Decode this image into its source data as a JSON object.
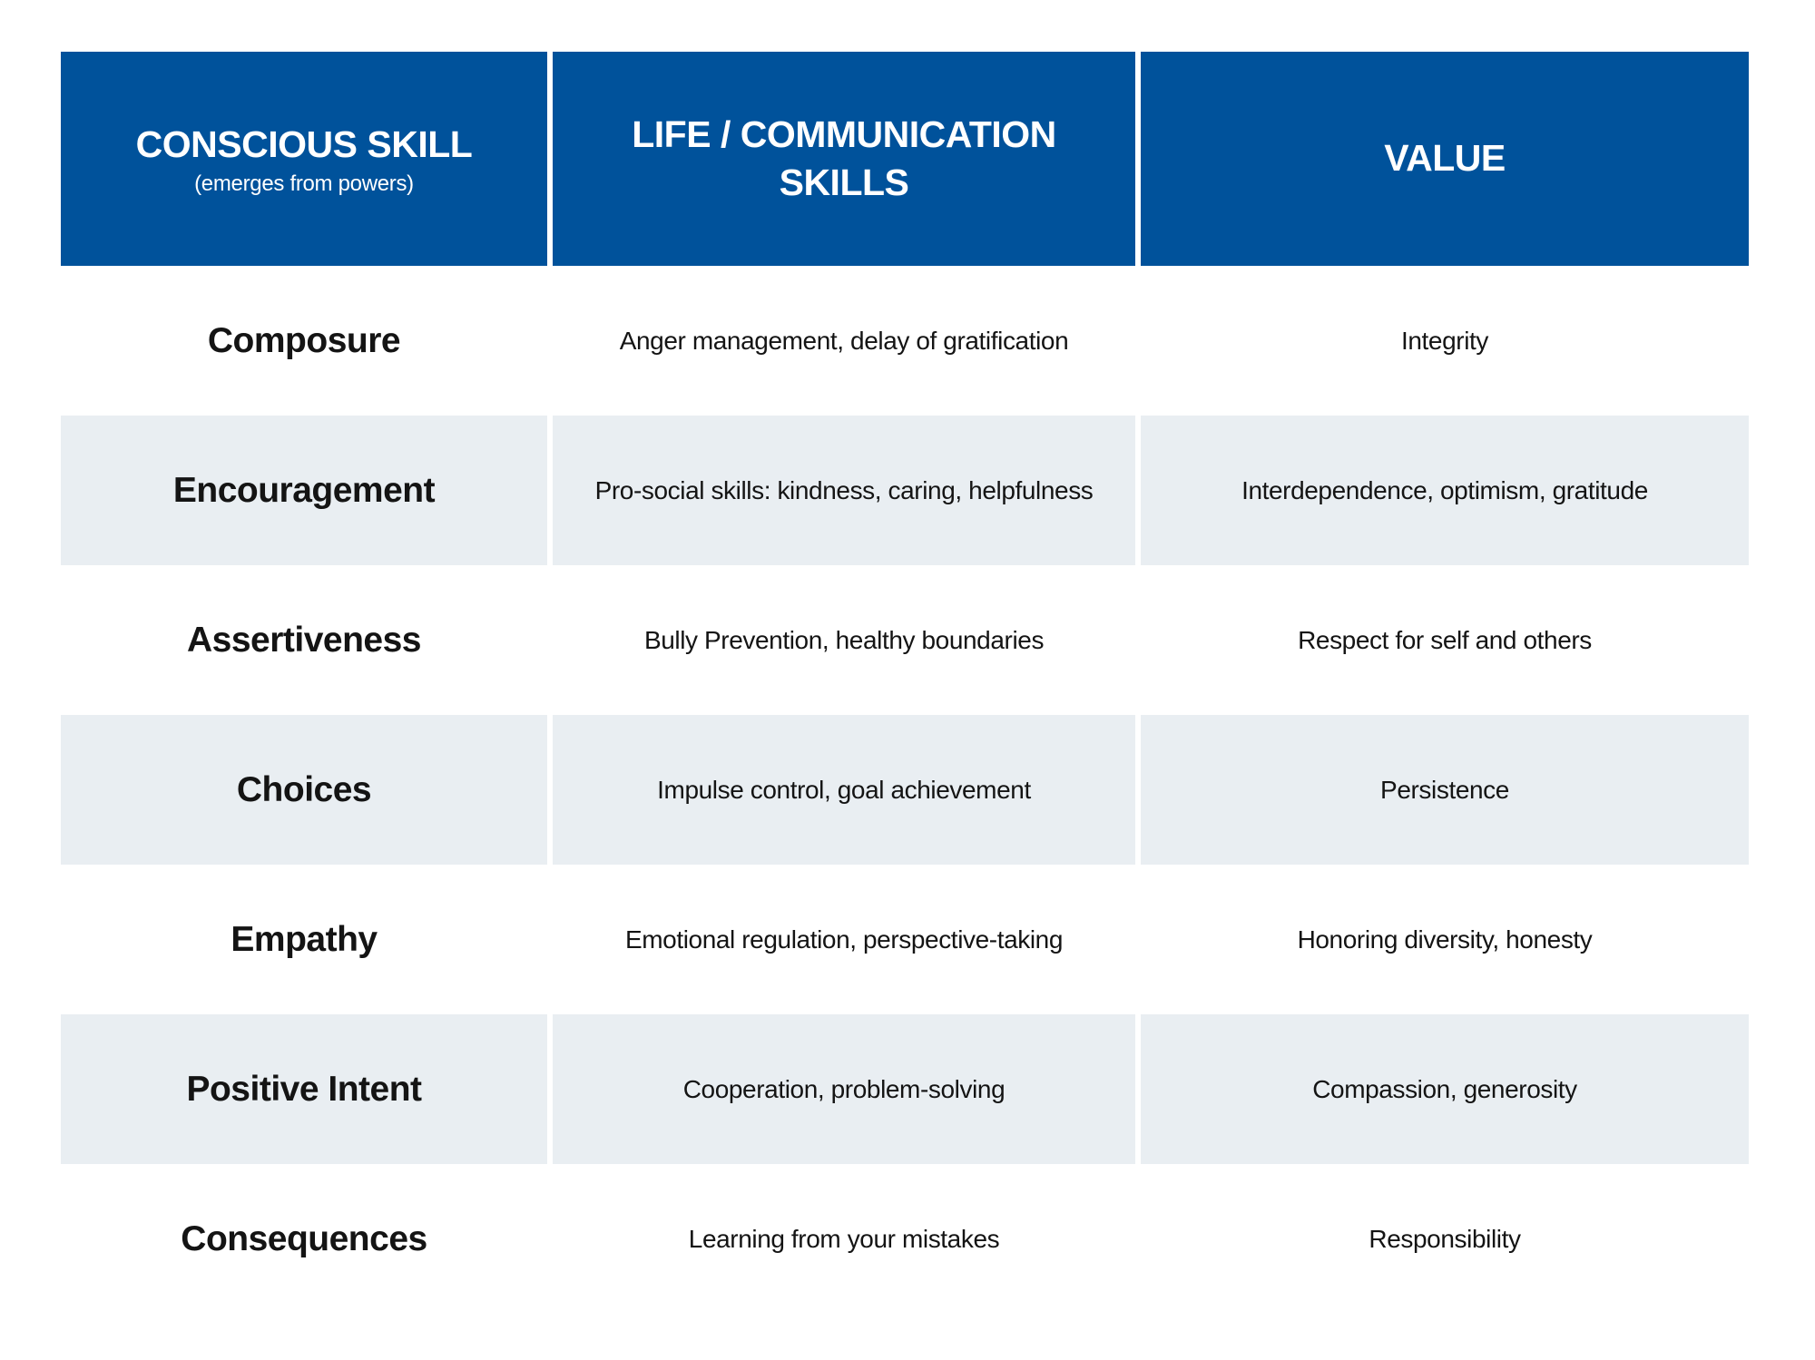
{
  "table": {
    "columns": [
      {
        "title": "CONSCIOUS SKILL",
        "subtitle": "(emerges from powers)"
      },
      {
        "title": "LIFE / COMMUNICATION SKILLS",
        "subtitle": ""
      },
      {
        "title": "VALUE",
        "subtitle": ""
      }
    ],
    "rows": [
      {
        "skill": "Composure",
        "life_skills": "Anger management, delay of gratification",
        "value": "Integrity"
      },
      {
        "skill": "Encouragement",
        "life_skills": "Pro-social skills: kindness, caring, helpfulness",
        "value": "Interdependence, optimism, gratitude"
      },
      {
        "skill": "Assertiveness",
        "life_skills": "Bully Prevention, healthy boundaries",
        "value": "Respect for self and others"
      },
      {
        "skill": "Choices",
        "life_skills": "Impulse control, goal achievement",
        "value": "Persistence"
      },
      {
        "skill": "Empathy",
        "life_skills": "Emotional regulation, perspective-taking",
        "value": "Honoring diversity, honesty"
      },
      {
        "skill": "Positive Intent",
        "life_skills": "Cooperation, problem-solving",
        "value": "Compassion, generosity"
      },
      {
        "skill": "Consequences",
        "life_skills": "Learning from your mistakes",
        "value": "Responsibility"
      }
    ]
  },
  "colors": {
    "page_bg": "#ffffff",
    "header_bg": "#00529b",
    "header_text": "#ffffff",
    "row_bg": "#ffffff",
    "alt_row_bg": "#e9eef2",
    "body_text": "#141414"
  }
}
